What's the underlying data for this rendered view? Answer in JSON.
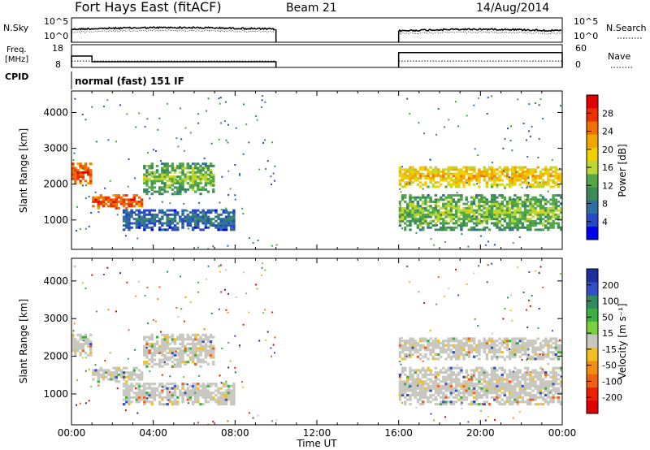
{
  "header": {
    "title": "Fort Hays East (fitACF)",
    "beam": "Beam 21",
    "date": "14/Aug/2014"
  },
  "strip_labels": {
    "nsky": "N.Sky",
    "nsearch": "N.Search",
    "freq_line1": "Freq.",
    "freq_line2": "[MHz]",
    "nave": "Nave",
    "cpid": "CPID",
    "cpid_value": "normal (fast) 151 IF"
  },
  "noise_axis": {
    "top": "10^5",
    "bottom": "10^0"
  },
  "freq_axis": {
    "left_ticks": [
      "18",
      "8"
    ],
    "right_ticks": [
      "60",
      "0"
    ]
  },
  "time_axis": {
    "label": "Time UT",
    "ticks": [
      "00:00",
      "04:00",
      "08:00",
      "12:00",
      "16:00",
      "20:00",
      "00:00"
    ]
  },
  "range_axis": {
    "label": "Slant Range [km]",
    "ticks": [
      "1000",
      "2000",
      "3000",
      "4000"
    ]
  },
  "power_scale": {
    "label": "Power [dB]",
    "ticks": [
      "4",
      "8",
      "12",
      "16",
      "20",
      "24",
      "28"
    ],
    "colors": [
      "#0000ee",
      "#2848c8",
      "#2f6ea0",
      "#3c8a5a",
      "#52a848",
      "#bcd632",
      "#f0d000",
      "#f0a800",
      "#f07000",
      "#ee3000",
      "#e00000"
    ]
  },
  "velocity_scale": {
    "label": "Velocity [m s⁻¹]",
    "ticks": [
      "200",
      "100",
      "50",
      "15",
      "-15",
      "-50",
      "-100",
      "-200"
    ],
    "colors": [
      "#1e2fa0",
      "#3350c8",
      "#2f8c60",
      "#3cb040",
      "#7ad040",
      "#c8c8c0",
      "#f0c020",
      "#f09010",
      "#f06010",
      "#ee2000",
      "#e00000"
    ]
  },
  "chart_data": [
    {
      "type": "line",
      "title": "Fort Hays East (fitACF)",
      "panel": "noise",
      "xlim_hours": [
        0,
        24
      ],
      "gaps_hours": [
        [
          10,
          16
        ]
      ],
      "series": [
        {
          "name": "N.Sky"
        },
        {
          "name": "N.Search"
        }
      ]
    },
    {
      "type": "line",
      "panel": "frequency / nave",
      "series": [
        {
          "name": "Freq.",
          "segments": [
            {
              "from_hour": 0,
              "to_hour": 1,
              "value_mhz": 13
            },
            {
              "from_hour": 1,
              "to_hour": 10,
              "value_mhz": 10.5
            },
            {
              "from_hour": 16,
              "to_hour": 24,
              "value_mhz": 14.5
            }
          ]
        },
        {
          "name": "Nave",
          "approx_value": 17
        }
      ]
    },
    {
      "type": "heatmap",
      "panel": "power",
      "ylabel": "Slant Range [km]",
      "xlabel": "Time UT",
      "ylim_km": [
        180,
        4600
      ],
      "no_data_hours": [
        [
          10,
          16
        ]
      ],
      "echo_bands": [
        {
          "from_hour": 0,
          "to_hour": 1,
          "range_km": [
            2000,
            2600
          ],
          "power_db": 26
        },
        {
          "from_hour": 1,
          "to_hour": 3.5,
          "range_km": [
            1300,
            1700
          ],
          "power_db": 26
        },
        {
          "from_hour": 3.5,
          "to_hour": 7,
          "range_km": [
            1700,
            2600
          ],
          "power_db": 14
        },
        {
          "from_hour": 2.5,
          "to_hour": 8,
          "range_km": [
            700,
            1300
          ],
          "power_db": 8
        },
        {
          "from_hour": 16,
          "to_hour": 24,
          "range_km": [
            1900,
            2500
          ],
          "power_db": 20
        },
        {
          "from_hour": 16,
          "to_hour": 24,
          "range_km": [
            700,
            1700
          ],
          "power_db": 14
        }
      ]
    },
    {
      "type": "heatmap",
      "panel": "velocity",
      "ylabel": "Slant Range [km]",
      "xlabel": "Time UT",
      "ylim_km": [
        180,
        4600
      ],
      "dominant_velocity_band": "-15 to 15"
    }
  ]
}
